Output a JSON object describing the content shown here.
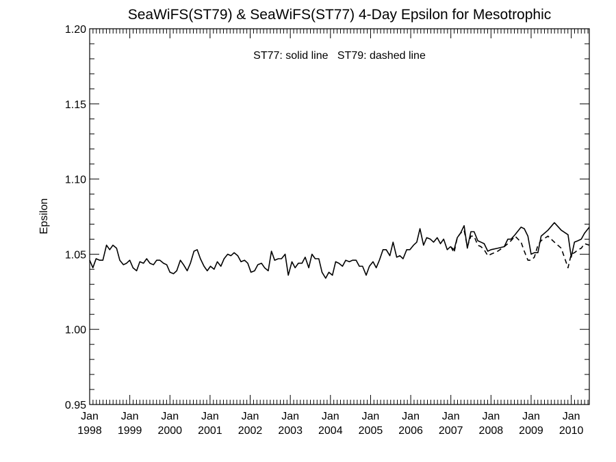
{
  "chart_data": {
    "type": "line",
    "title": "SeaWiFS(ST79) & SeaWiFS(ST77) 4-Day Epsilon for Mesotrophic",
    "ylabel": "Epsilon",
    "xlabel": "",
    "annotation": "ST77: solid line   ST79: dashed line",
    "ylim": [
      0.95,
      1.2
    ],
    "xlim": [
      1998.0,
      2010.45
    ],
    "y_ticks": [
      0.95,
      1.0,
      1.05,
      1.1,
      1.15,
      1.2
    ],
    "y_tick_labels": [
      "0.95",
      "1.00",
      "1.05",
      "1.10",
      "1.15",
      "1.20"
    ],
    "x_ticks": [
      1998,
      1999,
      2000,
      2001,
      2002,
      2003,
      2004,
      2005,
      2006,
      2007,
      2008,
      2009,
      2010
    ],
    "x_tick_labels_top": [
      "Jan",
      "Jan",
      "Jan",
      "Jan",
      "Jan",
      "Jan",
      "Jan",
      "Jan",
      "Jan",
      "Jan",
      "Jan",
      "Jan",
      "Jan"
    ],
    "x_tick_labels_bottom": [
      "1998",
      "1999",
      "2000",
      "2001",
      "2002",
      "2003",
      "2004",
      "2005",
      "2006",
      "2007",
      "2008",
      "2009",
      "2010"
    ],
    "grid": false,
    "series": [
      {
        "name": "ST77",
        "style": "solid",
        "color": "#000000",
        "x": [
          1998.0,
          1998.08,
          1998.16,
          1998.25,
          1998.33,
          1998.42,
          1998.5,
          1998.58,
          1998.67,
          1998.75,
          1998.84,
          1998.92,
          1999.0,
          1999.08,
          1999.17,
          1999.25,
          1999.34,
          1999.42,
          1999.5,
          1999.59,
          1999.67,
          1999.75,
          1999.84,
          1999.92,
          2000.0,
          2000.09,
          2000.17,
          2000.26,
          2000.34,
          2000.43,
          2000.51,
          2000.6,
          2000.68,
          2000.76,
          2000.85,
          2000.93,
          2001.01,
          2001.1,
          2001.18,
          2001.27,
          2001.35,
          2001.44,
          2001.52,
          2001.6,
          2001.69,
          2001.77,
          2001.86,
          2001.94,
          2002.02,
          2002.11,
          2002.19,
          2002.28,
          2002.36,
          2002.45,
          2002.53,
          2002.61,
          2002.7,
          2002.78,
          2002.87,
          2002.95,
          2003.04,
          2003.12,
          2003.2,
          2003.29,
          2003.37,
          2003.46,
          2003.54,
          2003.62,
          2003.71,
          2003.79,
          2003.88,
          2003.96,
          2004.05,
          2004.13,
          2004.21,
          2004.3,
          2004.38,
          2004.47,
          2004.55,
          2004.64,
          2004.72,
          2004.8,
          2004.89,
          2004.97,
          2005.06,
          2005.14,
          2005.22,
          2005.31,
          2005.39,
          2005.48,
          2005.56,
          2005.65,
          2005.73,
          2005.81,
          2005.9,
          2005.98,
          2006.07,
          2006.15,
          2006.23,
          2006.32,
          2006.4,
          2006.49,
          2006.57,
          2006.66,
          2006.74,
          2006.82,
          2006.91,
          2006.99,
          2007.08,
          2007.16,
          2007.24,
          2007.33,
          2007.41,
          2007.5,
          2007.58,
          2007.67,
          2007.75,
          2007.83,
          2007.92,
          2008.0,
          2008.17,
          2008.33,
          2008.42,
          2008.5,
          2008.6,
          2008.75,
          2008.83,
          2008.92,
          2009.0,
          2009.08,
          2009.17,
          2009.25,
          2009.42,
          2009.58,
          2009.75,
          2009.92,
          2010.0,
          2010.08,
          2010.17,
          2010.25,
          2010.33,
          2010.45
        ],
        "y": [
          1.046,
          1.041,
          1.047,
          1.046,
          1.046,
          1.056,
          1.053,
          1.056,
          1.054,
          1.046,
          1.043,
          1.044,
          1.046,
          1.041,
          1.039,
          1.045,
          1.044,
          1.047,
          1.044,
          1.043,
          1.046,
          1.046,
          1.044,
          1.043,
          1.038,
          1.037,
          1.039,
          1.046,
          1.043,
          1.039,
          1.044,
          1.052,
          1.053,
          1.047,
          1.042,
          1.039,
          1.042,
          1.04,
          1.045,
          1.042,
          1.047,
          1.05,
          1.049,
          1.051,
          1.049,
          1.045,
          1.046,
          1.044,
          1.038,
          1.039,
          1.043,
          1.044,
          1.041,
          1.039,
          1.052,
          1.046,
          1.047,
          1.047,
          1.05,
          1.036,
          1.045,
          1.041,
          1.044,
          1.044,
          1.048,
          1.041,
          1.05,
          1.047,
          1.047,
          1.038,
          1.034,
          1.038,
          1.036,
          1.045,
          1.044,
          1.042,
          1.046,
          1.045,
          1.046,
          1.046,
          1.042,
          1.042,
          1.036,
          1.042,
          1.045,
          1.041,
          1.046,
          1.053,
          1.053,
          1.049,
          1.058,
          1.048,
          1.049,
          1.047,
          1.053,
          1.053,
          1.056,
          1.058,
          1.067,
          1.056,
          1.061,
          1.06,
          1.058,
          1.061,
          1.057,
          1.06,
          1.053,
          1.055,
          1.053,
          1.061,
          1.064,
          1.069,
          1.054,
          1.065,
          1.065,
          1.059,
          1.058,
          1.057,
          1.052,
          1.053,
          1.054,
          1.055,
          1.06,
          1.06,
          1.063,
          1.068,
          1.067,
          1.062,
          1.05,
          1.051,
          1.051,
          1.062,
          1.066,
          1.071,
          1.066,
          1.063,
          1.048,
          1.058,
          1.059,
          1.06,
          1.064,
          1.068
        ]
      },
      {
        "name": "ST79",
        "style": "dashed",
        "color": "#000000",
        "x": [
          2007.0,
          2007.08,
          2007.16,
          2007.24,
          2007.33,
          2007.41,
          2007.5,
          2007.58,
          2007.67,
          2007.75,
          2007.83,
          2007.92,
          2008.0,
          2008.17,
          2008.33,
          2008.42,
          2008.5,
          2008.6,
          2008.75,
          2008.83,
          2008.92,
          2009.0,
          2009.08,
          2009.17,
          2009.25,
          2009.42,
          2009.58,
          2009.75,
          2009.92,
          2010.0,
          2010.08,
          2010.17,
          2010.25,
          2010.33,
          2010.45
        ],
        "y": [
          1.055,
          1.051,
          1.061,
          1.064,
          1.066,
          1.055,
          1.062,
          1.062,
          1.056,
          1.055,
          1.053,
          1.049,
          1.05,
          1.052,
          1.055,
          1.057,
          1.059,
          1.062,
          1.058,
          1.052,
          1.046,
          1.046,
          1.048,
          1.056,
          1.059,
          1.062,
          1.058,
          1.054,
          1.041,
          1.05,
          1.051,
          1.053,
          1.054,
          1.057,
          1.056
        ]
      }
    ]
  }
}
